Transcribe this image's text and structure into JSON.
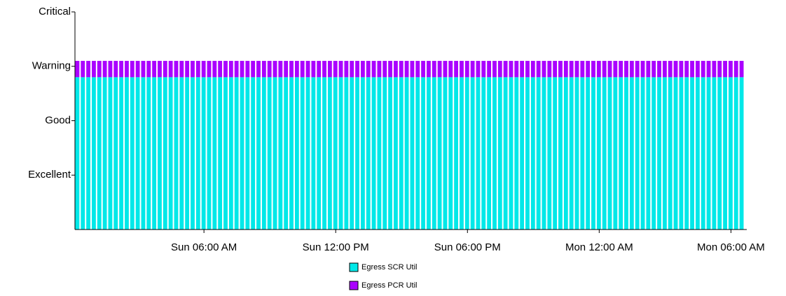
{
  "chart_data": {
    "type": "stacked_bar",
    "categories": [
      null,
      null,
      null,
      null,
      null,
      null,
      null,
      null,
      null,
      null,
      null,
      null,
      null,
      null,
      null,
      null,
      null,
      null,
      null,
      null,
      null,
      null,
      null,
      "Sun 06:00 AM",
      null,
      null,
      null,
      null,
      null,
      null,
      null,
      null,
      null,
      null,
      null,
      null,
      null,
      null,
      null,
      null,
      null,
      null,
      null,
      null,
      null,
      null,
      null,
      "Sun 12:00 PM",
      null,
      null,
      null,
      null,
      null,
      null,
      null,
      null,
      null,
      null,
      null,
      null,
      null,
      null,
      null,
      null,
      null,
      null,
      null,
      null,
      null,
      null,
      null,
      "Sun 06:00 PM",
      null,
      null,
      null,
      null,
      null,
      null,
      null,
      null,
      null,
      null,
      null,
      null,
      null,
      null,
      null,
      null,
      null,
      null,
      null,
      null,
      null,
      null,
      null,
      "Mon 12:00 AM",
      null,
      null,
      null,
      null,
      null,
      null,
      null,
      null,
      null,
      null,
      null,
      null,
      null,
      null,
      null,
      null,
      null,
      null,
      null,
      null,
      null,
      null,
      null,
      "Mon 06:00 AM",
      null,
      null
    ],
    "series": [
      {
        "name": "Egress SCR Util",
        "color": "#00e8e8",
        "values": [
          2.8,
          2.8,
          2.8,
          2.8,
          2.8,
          2.8,
          2.8,
          2.8,
          2.8,
          2.8,
          2.8,
          2.8,
          2.8,
          2.8,
          2.8,
          2.8,
          2.8,
          2.8,
          2.8,
          2.8,
          2.8,
          2.8,
          2.8,
          2.8,
          2.8,
          2.8,
          2.8,
          2.8,
          2.8,
          2.8,
          2.8,
          2.8,
          2.8,
          2.8,
          2.8,
          2.8,
          2.8,
          2.8,
          2.8,
          2.8,
          2.8,
          2.8,
          2.8,
          2.8,
          2.8,
          2.8,
          2.8,
          2.8,
          2.8,
          2.8,
          2.8,
          2.8,
          2.8,
          2.8,
          2.8,
          2.8,
          2.8,
          2.8,
          2.8,
          2.8,
          2.8,
          2.8,
          2.8,
          2.8,
          2.8,
          2.8,
          2.8,
          2.8,
          2.8,
          2.8,
          2.8,
          2.8,
          2.8,
          2.8,
          2.8,
          2.8,
          2.8,
          2.8,
          2.8,
          2.8,
          2.8,
          2.8,
          2.8,
          2.8,
          2.8,
          2.8,
          2.8,
          2.8,
          2.8,
          2.8,
          2.8,
          2.8,
          2.8,
          2.8,
          2.8,
          2.8,
          2.8,
          2.8,
          2.8,
          2.8,
          2.8,
          2.8,
          2.8,
          2.8,
          2.8,
          2.8,
          2.8,
          2.8,
          2.8,
          2.8,
          2.8,
          2.8,
          2.8,
          2.8,
          2.8,
          2.8,
          2.8,
          2.8,
          2.8,
          2.8,
          2.8,
          2.8
        ]
      },
      {
        "name": "Egress PCR Util",
        "color": "#aa00ff",
        "values": [
          0.3,
          0.3,
          0.3,
          0.3,
          0.3,
          0.3,
          0.3,
          0.3,
          0.3,
          0.3,
          0.3,
          0.3,
          0.3,
          0.3,
          0.3,
          0.3,
          0.3,
          0.3,
          0.3,
          0.3,
          0.3,
          0.3,
          0.3,
          0.3,
          0.3,
          0.3,
          0.3,
          0.3,
          0.3,
          0.3,
          0.3,
          0.3,
          0.3,
          0.3,
          0.3,
          0.3,
          0.3,
          0.3,
          0.3,
          0.3,
          0.3,
          0.3,
          0.3,
          0.3,
          0.3,
          0.3,
          0.3,
          0.3,
          0.3,
          0.3,
          0.3,
          0.3,
          0.3,
          0.3,
          0.3,
          0.3,
          0.3,
          0.3,
          0.3,
          0.3,
          0.3,
          0.3,
          0.3,
          0.3,
          0.3,
          0.3,
          0.3,
          0.3,
          0.3,
          0.3,
          0.3,
          0.3,
          0.3,
          0.3,
          0.3,
          0.3,
          0.3,
          0.3,
          0.3,
          0.3,
          0.3,
          0.3,
          0.3,
          0.3,
          0.3,
          0.3,
          0.3,
          0.3,
          0.3,
          0.3,
          0.3,
          0.3,
          0.3,
          0.3,
          0.3,
          0.3,
          0.3,
          0.3,
          0.3,
          0.3,
          0.3,
          0.3,
          0.3,
          0.3,
          0.3,
          0.3,
          0.3,
          0.3,
          0.3,
          0.3,
          0.3,
          0.3,
          0.3,
          0.3,
          0.3,
          0.3,
          0.3,
          0.3,
          0.3,
          0.3,
          0.3,
          0.3
        ]
      }
    ],
    "ylim": [
      0,
      4
    ],
    "yticks": [
      {
        "value": 1,
        "label": "Excellent"
      },
      {
        "value": 2,
        "label": "Good"
      },
      {
        "value": 3,
        "label": "Warning"
      },
      {
        "value": 4,
        "label": "Critical"
      }
    ],
    "legend": "bottom"
  }
}
